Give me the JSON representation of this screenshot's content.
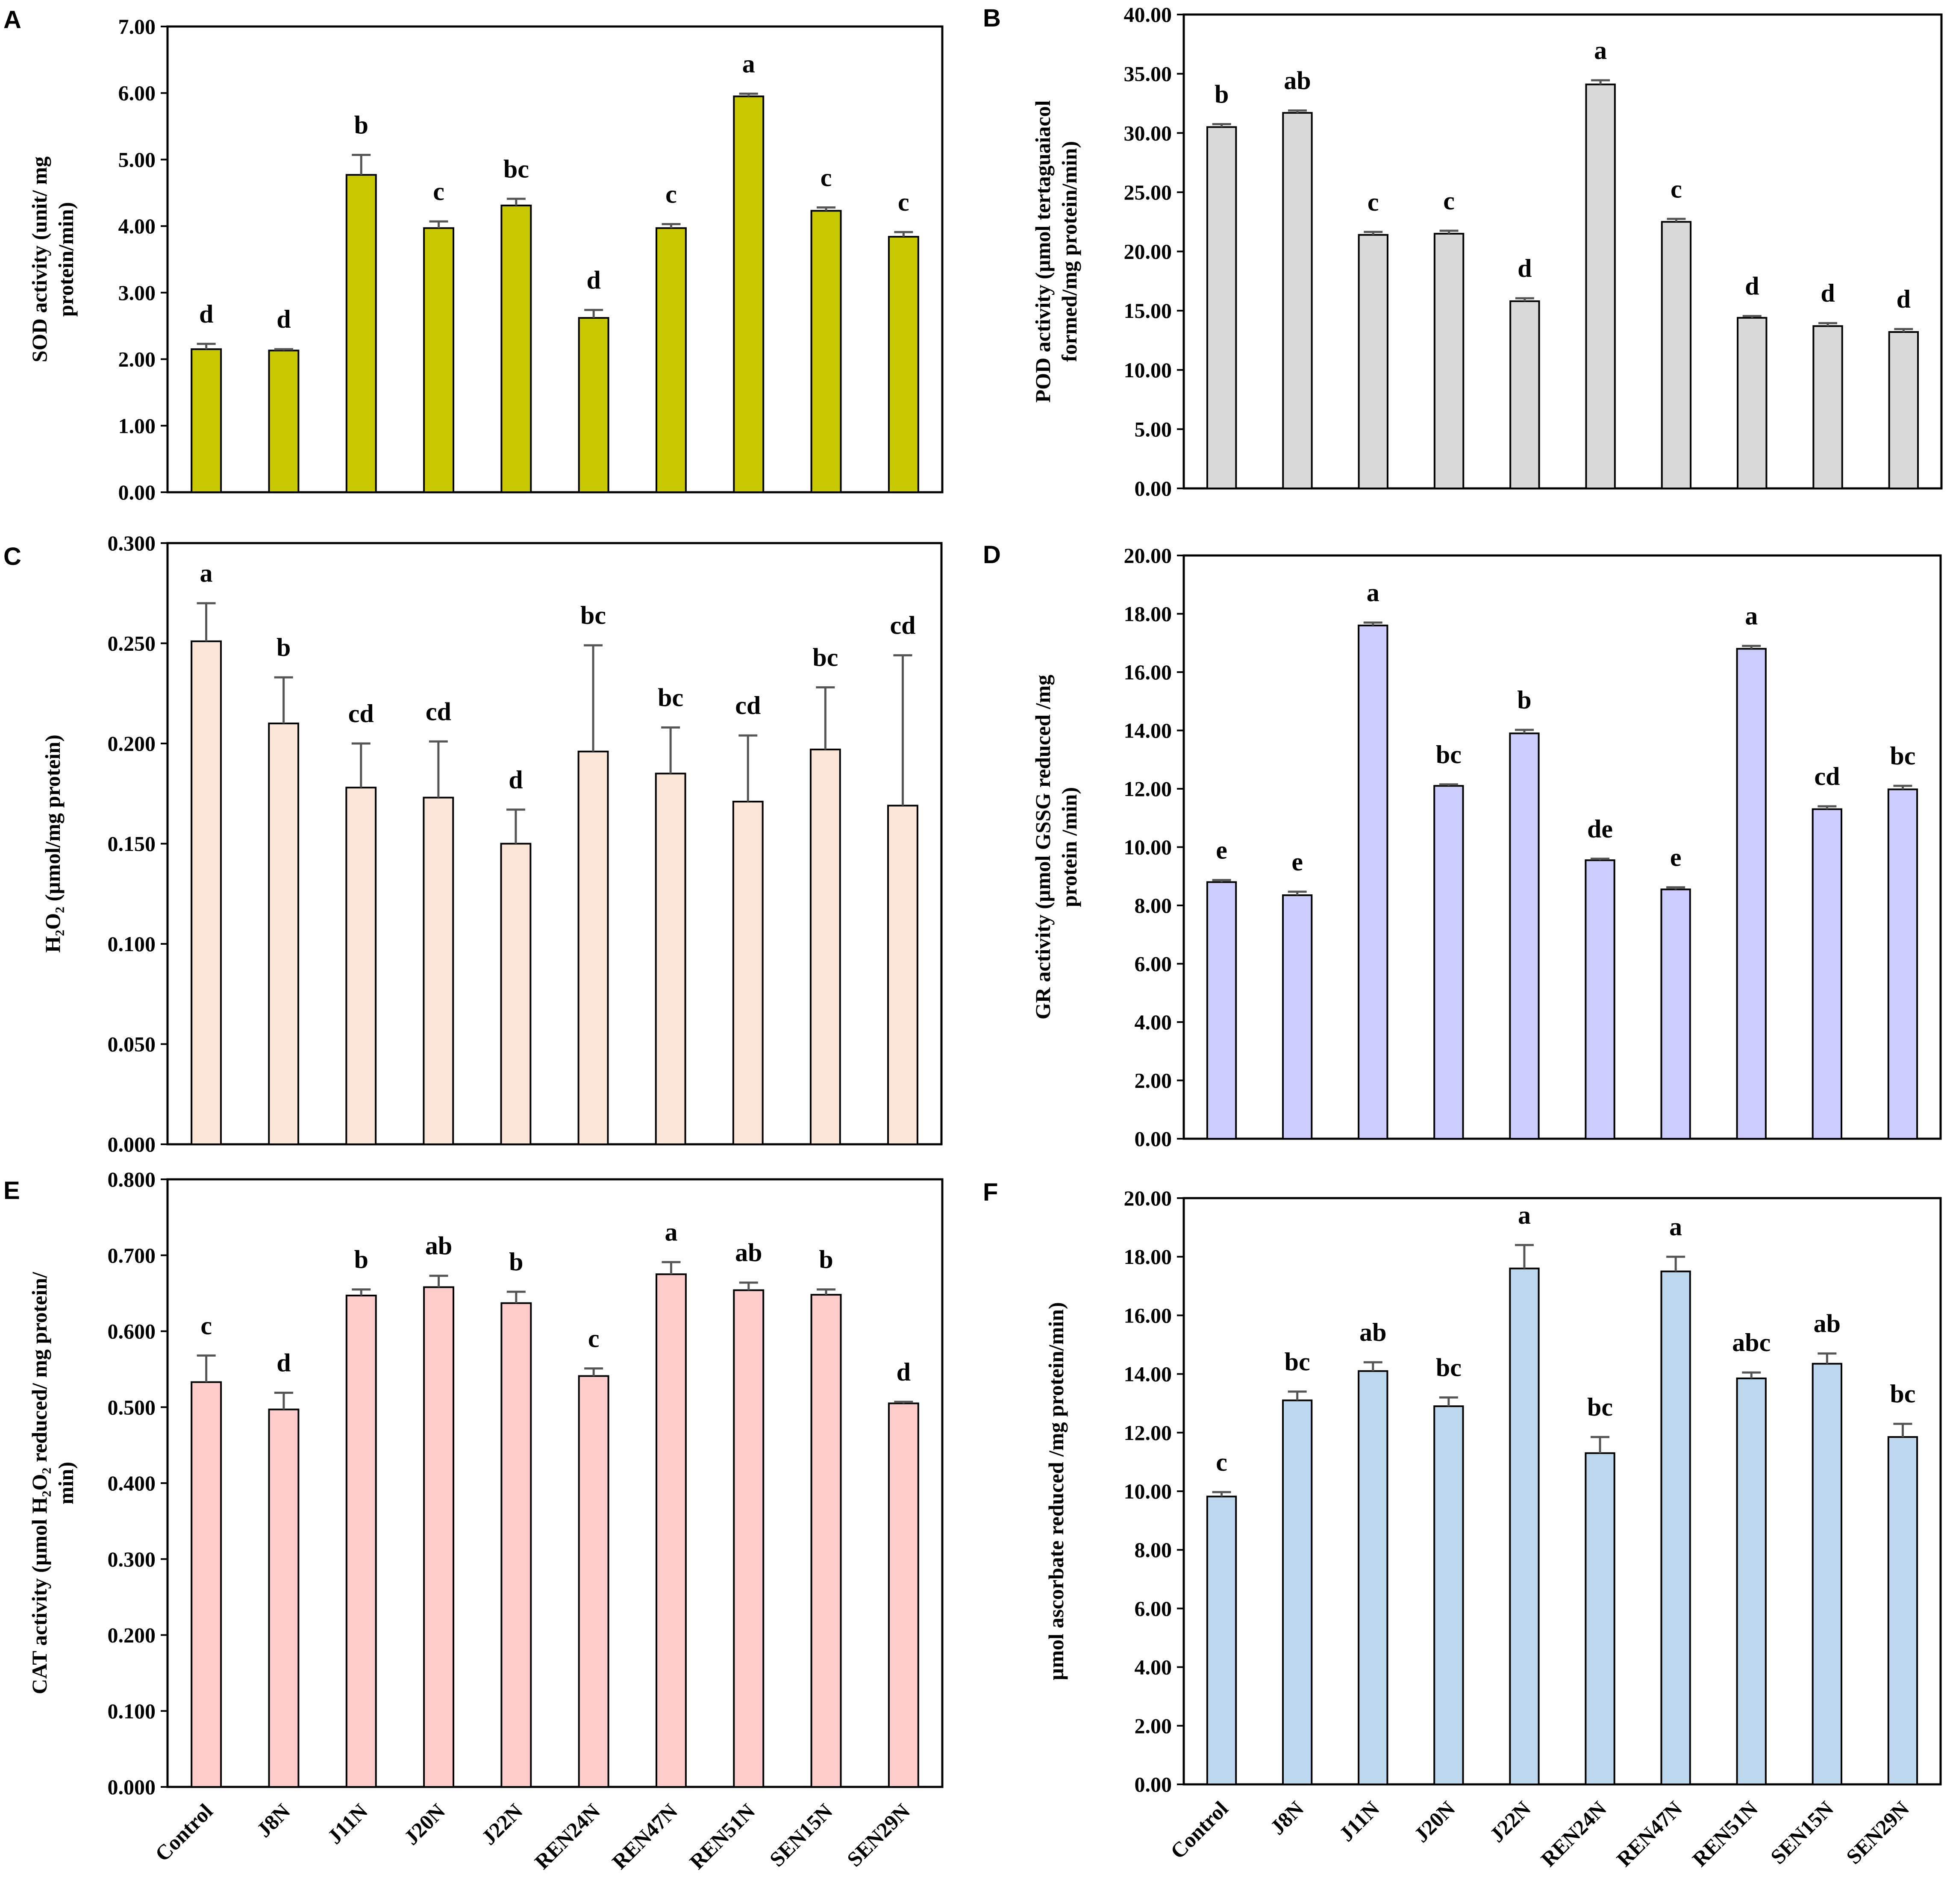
{
  "chart_data": [
    {
      "panel": "A",
      "type": "bar",
      "ylabel_lines": [
        "SOD activity (unit/ mg",
        "protein/min)"
      ],
      "ylim": [
        0,
        7
      ],
      "yticks": [
        "0.00",
        "1.00",
        "2.00",
        "3.00",
        "4.00",
        "5.00",
        "6.00",
        "7.00"
      ],
      "categories": [
        "Control",
        "J8N",
        "J11N",
        "J20N",
        "J22N",
        "REN24N",
        "REN47N",
        "REN51N",
        "SEN15N",
        "SEN29N"
      ],
      "values": [
        2.15,
        2.13,
        4.77,
        3.97,
        4.31,
        2.62,
        3.97,
        5.95,
        4.23,
        3.84
      ],
      "errors": [
        0.08,
        0.02,
        0.3,
        0.1,
        0.1,
        0.12,
        0.06,
        0.04,
        0.05,
        0.07
      ],
      "letters": [
        "d",
        "d",
        "b",
        "c",
        "bc",
        "d",
        "c",
        "a",
        "c",
        "c"
      ],
      "bar_color": "#c8c800",
      "show_categories": false
    },
    {
      "panel": "B",
      "type": "bar",
      "ylabel_lines": [
        "POD activity (µmol tertaguaiacol",
        "formed/mg protein/min)"
      ],
      "ylim": [
        0,
        40
      ],
      "yticks": [
        "0.00",
        "5.00",
        "10.00",
        "15.00",
        "20.00",
        "25.00",
        "30.00",
        "35.00",
        "40.00"
      ],
      "categories": [
        "Control",
        "J8N",
        "J11N",
        "J20N",
        "J22N",
        "REN24N",
        "REN47N",
        "REN51N",
        "SEN15N",
        "SEN29N"
      ],
      "values": [
        30.5,
        31.7,
        21.4,
        21.5,
        15.8,
        34.1,
        22.5,
        14.4,
        13.7,
        13.2
      ],
      "errors": [
        0.25,
        0.2,
        0.25,
        0.25,
        0.25,
        0.35,
        0.25,
        0.15,
        0.25,
        0.25
      ],
      "letters": [
        "b",
        "ab",
        "c",
        "c",
        "d",
        "a",
        "c",
        "d",
        "d",
        "d"
      ],
      "bar_color": "#d9d9d9",
      "show_categories": false
    },
    {
      "panel": "C",
      "type": "bar",
      "ylabel_lines": [
        "H₂O₂ (µmol/mg protein)"
      ],
      "ylim": [
        0,
        0.3
      ],
      "yticks": [
        "0.000",
        "0.050",
        "0.100",
        "0.150",
        "0.200",
        "0.250",
        "0.300"
      ],
      "categories": [
        "Control",
        "J8N",
        "J11N",
        "J20N",
        "J22N",
        "REN24N",
        "REN47N",
        "REN51N",
        "SEN15N",
        "SEN29N"
      ],
      "values": [
        0.251,
        0.21,
        0.178,
        0.173,
        0.15,
        0.196,
        0.185,
        0.171,
        0.197,
        0.169
      ],
      "errors": [
        0.019,
        0.023,
        0.022,
        0.028,
        0.017,
        0.053,
        0.023,
        0.033,
        0.031,
        0.075
      ],
      "letters": [
        "a",
        "b",
        "cd",
        "cd",
        "d",
        "bc",
        "bc",
        "cd",
        "bc",
        "cd"
      ],
      "bar_color": "#fbe5d6",
      "show_categories": false
    },
    {
      "panel": "D",
      "type": "bar",
      "ylabel_lines": [
        "GR activity (µmol GSSG reduced /mg",
        "protein /min)"
      ],
      "ylim": [
        0,
        20
      ],
      "yticks": [
        "0.00",
        "2.00",
        "4.00",
        "6.00",
        "8.00",
        "10.00",
        "12.00",
        "14.00",
        "16.00",
        "18.00",
        "20.00"
      ],
      "categories": [
        "Control",
        "J8N",
        "J11N",
        "J20N",
        "J22N",
        "REN24N",
        "REN47N",
        "REN51N",
        "SEN15N",
        "SEN29N"
      ],
      "values": [
        8.8,
        8.35,
        17.6,
        12.1,
        13.9,
        9.55,
        8.55,
        16.8,
        11.3,
        11.98
      ],
      "errors": [
        0.07,
        0.12,
        0.1,
        0.05,
        0.12,
        0.05,
        0.07,
        0.1,
        0.1,
        0.12
      ],
      "letters": [
        "e",
        "e",
        "a",
        "bc",
        "b",
        "de",
        "e",
        "a",
        "cd",
        "bc"
      ],
      "bar_color": "#ccccff",
      "show_categories": false
    },
    {
      "panel": "E",
      "type": "bar",
      "ylabel_lines": [
        "CAT activity (µmol H₂O₂ reduced/ mg protein/",
        "min)"
      ],
      "ylim": [
        0,
        0.8
      ],
      "yticks": [
        "0.000",
        "0.100",
        "0.200",
        "0.300",
        "0.400",
        "0.500",
        "0.600",
        "0.700",
        "0.800"
      ],
      "categories": [
        "Control",
        "J8N",
        "J11N",
        "J20N",
        "J22N",
        "REN24N",
        "REN47N",
        "REN51N",
        "SEN15N",
        "SEN29N"
      ],
      "values": [
        0.533,
        0.497,
        0.647,
        0.658,
        0.637,
        0.541,
        0.675,
        0.654,
        0.648,
        0.505
      ],
      "errors": [
        0.035,
        0.022,
        0.008,
        0.015,
        0.015,
        0.01,
        0.016,
        0.01,
        0.007,
        0.002
      ],
      "letters": [
        "c",
        "d",
        "b",
        "ab",
        "b",
        "c",
        "a",
        "ab",
        "b",
        "d"
      ],
      "bar_color": "#ffcccc",
      "show_categories": true
    },
    {
      "panel": "F",
      "type": "bar",
      "ylabel_lines": [
        "µmol ascorbate reduced /mg protein/min)"
      ],
      "ylim": [
        0,
        20
      ],
      "yticks": [
        "0.00",
        "2.00",
        "4.00",
        "6.00",
        "8.00",
        "10.00",
        "12.00",
        "14.00",
        "16.00",
        "18.00",
        "20.00"
      ],
      "categories": [
        "Control",
        "J8N",
        "J11N",
        "J20N",
        "J22N",
        "REN24N",
        "REN47N",
        "REN51N",
        "SEN15N",
        "SEN29N"
      ],
      "values": [
        9.82,
        13.1,
        14.1,
        12.9,
        17.6,
        11.3,
        17.5,
        13.85,
        14.35,
        11.85
      ],
      "errors": [
        0.15,
        0.3,
        0.3,
        0.3,
        0.8,
        0.55,
        0.5,
        0.2,
        0.35,
        0.45
      ],
      "letters": [
        "c",
        "bc",
        "ab",
        "bc",
        "a",
        "bc",
        "a",
        "abc",
        "ab",
        "bc"
      ],
      "bar_color": "#bdd7ee",
      "show_categories": true
    }
  ]
}
